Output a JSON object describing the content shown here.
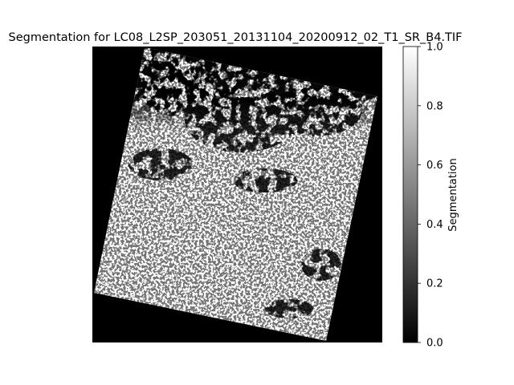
{
  "chart_data": {
    "type": "heatmap",
    "title": "Segmentation for LC08_L2SP_203051_20131104_20200912_02_T1_SR_B4.TIF",
    "colormap": "gray",
    "colorbar": {
      "label": "Segmentation",
      "range": [
        0.0,
        1.0
      ],
      "ticks": [
        0.0,
        0.2,
        0.4,
        0.6,
        0.8,
        1.0
      ],
      "tick_labels": [
        "0.0",
        "0.2",
        "0.4",
        "0.6",
        "0.8",
        "1.0"
      ]
    },
    "axes_visible": false,
    "image_description_values": {
      "background_value": 0.0,
      "segmented_value_min": 0.0,
      "segmented_value_max": 1.0
    }
  }
}
